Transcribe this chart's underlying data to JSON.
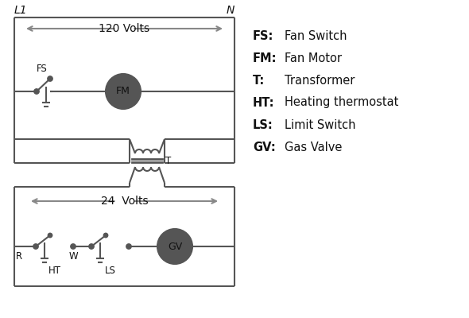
{
  "bg_color": "#ffffff",
  "line_color": "#555555",
  "arrow_color": "#888888",
  "text_color": "#111111",
  "legend": [
    [
      "FS:",
      "Fan Switch"
    ],
    [
      "FM:",
      "Fan Motor"
    ],
    [
      "T:",
      "Transformer"
    ],
    [
      "HT:",
      "Heating thermostat"
    ],
    [
      "LS:",
      "Limit Switch"
    ],
    [
      "GV:",
      "Gas Valve"
    ]
  ],
  "L1_label": "L1",
  "N_label": "N",
  "volts120": "120 Volts",
  "volts24": "24  Volts",
  "T_label": "T",
  "FS_label": "FS",
  "FM_label": "FM",
  "R_label": "R",
  "W_label": "W",
  "HT_label": "HT",
  "LS_label": "LS",
  "GV_label": "GV"
}
